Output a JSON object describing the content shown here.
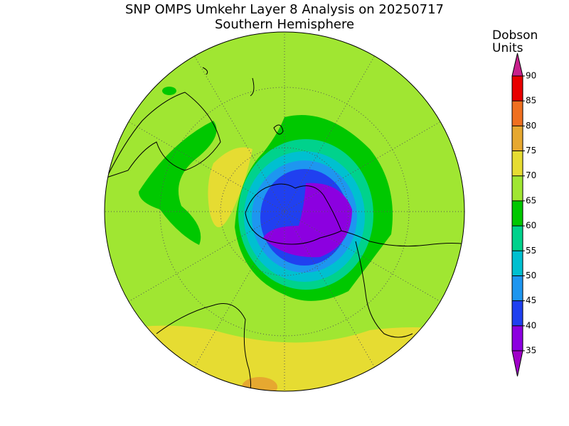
{
  "title": "SNP OMPS Umkehr Layer 8 Analysis on 20250717",
  "subtitle": "Southern Hemisphere",
  "colorbar": {
    "label": [
      "Dobson",
      "Units"
    ],
    "ticks": [
      35,
      40,
      45,
      50,
      55,
      60,
      65,
      70,
      75,
      80,
      85,
      90
    ],
    "colors": [
      "#8c00e0",
      "#2040f0",
      "#1e96f0",
      "#00c0d0",
      "#00d28c",
      "#00c800",
      "#a0e632",
      "#e6dc32",
      "#e6a830",
      "#f07020",
      "#e80000"
    ],
    "under_color": "#a000c8",
    "over_color": "#c8208c"
  }
}
